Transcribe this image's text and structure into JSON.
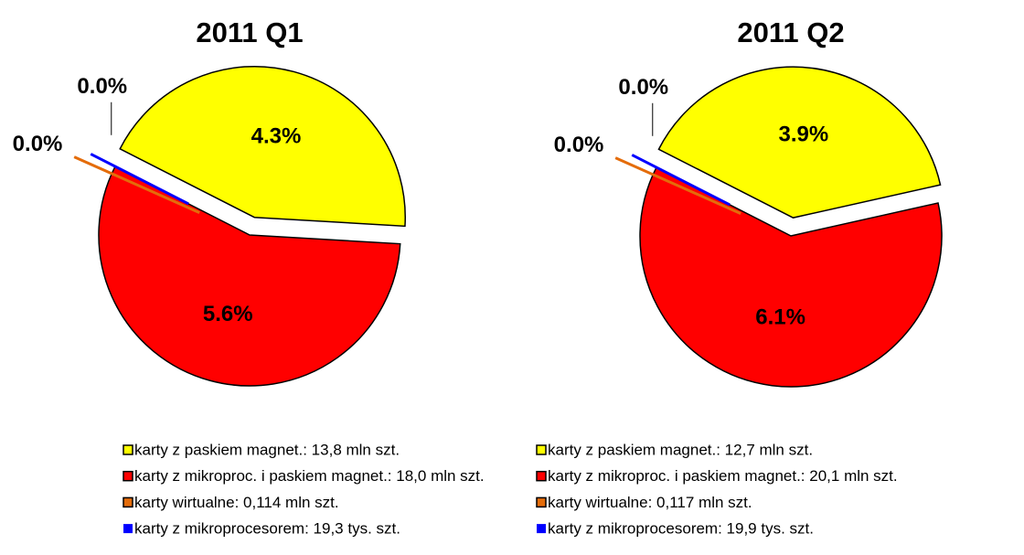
{
  "chart_data": [
    {
      "type": "pie",
      "title": "2011 Q1",
      "categories": [
        "karty z paskiem magnet.: 13,8 mln szt.",
        "karty z mikroproc. i paskiem magnet.: 18,0 mln szt.",
        "karty wirtualne: 0,114 mln szt.",
        "karty z mikroprocesorem: 19,3 tys. szt."
      ],
      "values": [
        4.3,
        5.6,
        0.0,
        0.0
      ],
      "value_labels": [
        "4.3%",
        "5.6%",
        "0.0%",
        "0.0%"
      ],
      "colors": [
        "#ffff00",
        "#ff0000",
        "#e46c0a",
        "#0000ff"
      ]
    },
    {
      "type": "pie",
      "title": "2011 Q2",
      "categories": [
        "karty z paskiem magnet.: 12,7 mln szt.",
        "karty z mikroproc. i paskiem magnet.: 20,1 mln szt.",
        "karty wirtualne: 0,117 mln szt.",
        "karty z mikroprocesorem: 19,9 tys. szt."
      ],
      "values": [
        3.9,
        6.1,
        0.0,
        0.0
      ],
      "value_labels": [
        "3.9%",
        "6.1%",
        "0.0%",
        "0.0%"
      ],
      "colors": [
        "#ffff00",
        "#ff0000",
        "#e46c0a",
        "#0000ff"
      ]
    }
  ]
}
